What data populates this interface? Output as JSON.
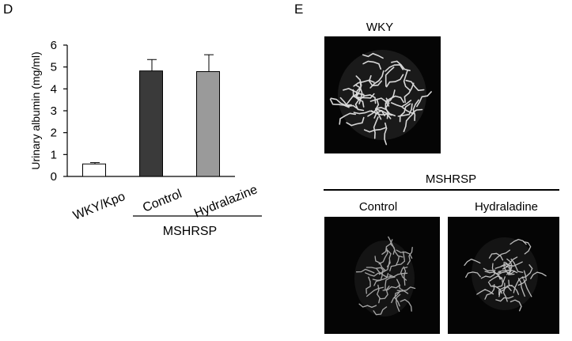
{
  "panel_d_label": "D",
  "panel_e_label": "E",
  "chart_data": {
    "type": "bar",
    "ylabel": "Urinary albumin (mg/ml)",
    "ylim": [
      0,
      6
    ],
    "yticks": [
      "0",
      "1",
      "2",
      "3",
      "4",
      "5",
      "6"
    ],
    "categories": [
      "WKY/Kpo",
      "Control",
      "Hydralazine"
    ],
    "values": [
      0.57,
      4.82,
      4.79
    ],
    "errors": [
      0.06,
      0.52,
      0.77
    ],
    "bar_colors": [
      "#ffffff",
      "#3a3a3a",
      "#9a9a9a"
    ],
    "group_label": "MSHRSP",
    "group_members": [
      "Control",
      "Hydralazine"
    ]
  },
  "panel_e": {
    "wky_title": "WKY",
    "mshrsp_title": "MSHRSP",
    "control_title": "Control",
    "hydraladine_title": "Hydraladine"
  }
}
